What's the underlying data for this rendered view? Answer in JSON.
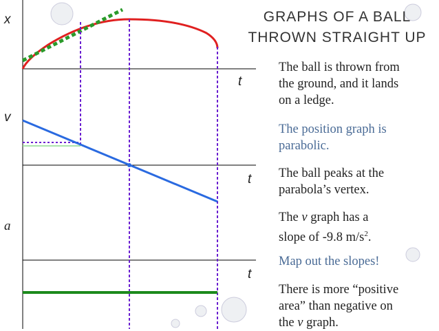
{
  "graph_labels": {
    "x_axis": "x",
    "x_time": "t",
    "v_axis": "v",
    "v_time": "t",
    "a_axis": "a",
    "a_time": "t"
  },
  "header": {
    "title_lines": [
      "GRAPHS OF A BALL",
      "THROWN STRAIGHT UP"
    ]
  },
  "paragraphs": [
    {
      "lines": [
        "The ball is thrown from",
        "the ground, and it lands",
        "on a ledge."
      ]
    },
    {
      "lines": [
        "The position graph is",
        "parabolic."
      ]
    },
    {
      "lines": [
        "The ball peaks at the",
        "parabola’s vertex."
      ]
    },
    {
      "lines": [
        [
          "The ",
          "v",
          " graph has a"
        ],
        [
          "slope of -9.8 m/s",
          "2",
          "."
        ]
      ]
    },
    {
      "lines": [
        "Map out the slopes!"
      ]
    },
    {
      "lines": [
        "There is more “positive",
        "area” than negative on",
        [
          "the ",
          "v",
          " graph."
        ]
      ]
    }
  ]
}
